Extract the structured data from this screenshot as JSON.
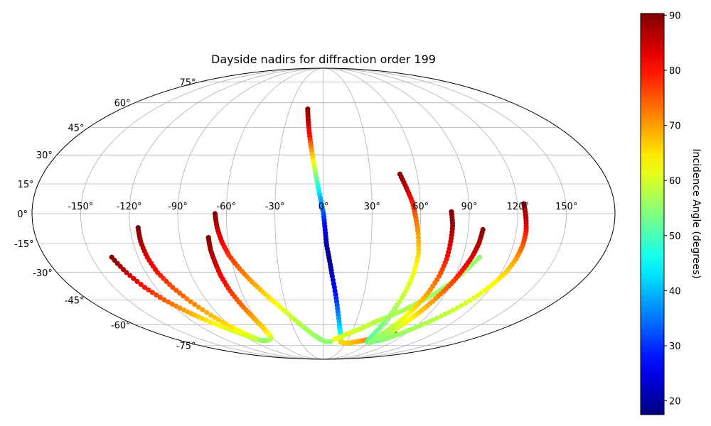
{
  "chart_data": {
    "type": "scatter",
    "projection": "mollweide",
    "title": "Dayside nadirs for diffraction order 199",
    "xlabel": "",
    "ylabel": "",
    "xlim": [
      -180,
      180
    ],
    "ylim": [
      -90,
      90
    ],
    "grid": true,
    "x_tick_values": [
      -150,
      -120,
      -90,
      -60,
      -30,
      0,
      30,
      60,
      90,
      120,
      150
    ],
    "x_tick_labels": [
      "-150°",
      "-120°",
      "-90°",
      "-60°",
      "-30°",
      "0°",
      "30°",
      "60°",
      "90°",
      "120°",
      "150°"
    ],
    "y_tick_values": [
      75,
      60,
      45,
      30,
      15,
      0,
      -15,
      -30,
      -45,
      -60,
      -75
    ],
    "y_tick_labels": [
      "75°",
      "60°",
      "45°",
      "30°",
      "15°",
      "0°",
      "-15°",
      "-30°",
      "-45°",
      "-60°",
      "-75°"
    ],
    "colorbar": {
      "label": "Incidence Angle (degrees)",
      "colormap": "jet",
      "range": [
        17.5,
        90.3
      ],
      "tick_values": [
        20,
        30,
        40,
        50,
        60,
        70,
        80,
        90
      ],
      "tick_labels": [
        "20",
        "30",
        "40",
        "50",
        "60",
        "70",
        "80",
        "90"
      ]
    },
    "series": [
      {
        "lon": [
          -137,
          -133,
          -128,
          -122,
          -115,
          -108,
          -100,
          -92,
          -86,
          -82,
          -79
        ],
        "lat": [
          -22,
          -30,
          -38,
          -45,
          -51,
          -56,
          -61,
          -65,
          -68,
          -70,
          -71
        ],
        "incidence": [
          90,
          86,
          80,
          75,
          70,
          66,
          62,
          60,
          58,
          56,
          55
        ]
      },
      {
        "lon": [
          -115,
          -115,
          -114,
          -112,
          -108,
          -103,
          -97,
          -91,
          -86,
          -82,
          -79
        ],
        "lat": [
          -7,
          -14,
          -22,
          -30,
          -38,
          -46,
          -54,
          -61,
          -66,
          -69,
          -71
        ],
        "incidence": [
          90,
          88,
          84,
          80,
          76,
          72,
          68,
          65,
          62,
          60,
          58
        ]
      },
      {
        "lon": [
          -72,
          -72,
          -71,
          -70,
          -68,
          -65,
          -62,
          -60,
          -60,
          -62,
          -65,
          -70,
          -75,
          -79
        ],
        "lat": [
          -12,
          -18,
          -25,
          -32,
          -40,
          -48,
          -55,
          -61,
          -66,
          -69,
          -70,
          -71,
          -71,
          -71
        ],
        "incidence": [
          90,
          88,
          85,
          82,
          78,
          74,
          70,
          67,
          64,
          61,
          59,
          57,
          56,
          55
        ]
      },
      {
        "lon": [
          -67,
          -66,
          -64,
          -61,
          -56,
          -50,
          -43,
          -35,
          -27,
          -19,
          -11,
          -4,
          3,
          9
        ],
        "lat": [
          0,
          -7,
          -14,
          -21,
          -28,
          -35,
          -42,
          -49,
          -56,
          -62,
          -67,
          -70,
          -72,
          -72
        ],
        "incidence": [
          90,
          86,
          82,
          78,
          74,
          70,
          66,
          62,
          59,
          57,
          56,
          55,
          55,
          55
        ]
      },
      {
        "lon": [
          -14,
          -12,
          -10,
          -8,
          -6,
          -4,
          -2,
          0,
          1,
          2,
          4,
          6,
          9,
          12,
          16,
          21
        ],
        "lat": [
          56,
          48,
          40,
          32,
          24,
          16,
          8,
          0,
          -8,
          -16,
          -24,
          -32,
          -42,
          -52,
          -62,
          -70
        ],
        "incidence": [
          90,
          86,
          80,
          70,
          60,
          50,
          40,
          32,
          25,
          20,
          18,
          22,
          28,
          35,
          42,
          48
        ]
      },
      {
        "lon": [
          22,
          28,
          35,
          42,
          50,
          57,
          63,
          68,
          73,
          78
        ],
        "lat": [
          -72,
          -73,
          -73,
          -72,
          -71,
          -70,
          -69,
          -68,
          -67,
          -66
        ],
        "incidence": [
          65,
          66,
          67,
          68,
          70,
          72,
          74,
          76,
          78,
          80
        ]
      },
      {
        "lon": [
          13,
          21,
          30,
          39,
          48,
          57,
          66,
          75,
          83,
          90,
          96,
          101
        ],
        "lat": [
          -70,
          -68,
          -65,
          -62,
          -58,
          -55,
          -51,
          -46,
          -41,
          -35,
          -28,
          -22
        ],
        "incidence": [
          62,
          61,
          60,
          59,
          58,
          58,
          57,
          57,
          56,
          56,
          56,
          55
        ]
      },
      {
        "lon": [
          49,
          52,
          55,
          57,
          59,
          61,
          61,
          60,
          58,
          56,
          55,
          57,
          62,
          68,
          74
        ],
        "lat": [
          20,
          13,
          6,
          -2,
          -10,
          -20,
          -30,
          -40,
          -50,
          -60,
          -68,
          -72,
          -72,
          -71,
          -70
        ],
        "incidence": [
          90,
          86,
          80,
          74,
          70,
          66,
          62,
          60,
          57,
          54,
          52,
          50,
          50,
          51,
          52
        ]
      },
      {
        "lon": [
          79,
          80,
          80,
          80,
          79,
          77,
          74,
          71,
          67,
          64,
          62,
          62
        ],
        "lat": [
          1,
          -6,
          -14,
          -23,
          -32,
          -41,
          -49,
          -56,
          -62,
          -67,
          -71,
          -73
        ],
        "incidence": [
          90,
          88,
          85,
          80,
          75,
          70,
          66,
          62,
          58,
          56,
          55,
          55
        ]
      },
      {
        "lon": [
          99,
          98,
          96,
          93,
          90,
          86,
          82,
          78,
          74,
          70
        ],
        "lat": [
          -8,
          -15,
          -22,
          -29,
          -36,
          -43,
          -50,
          -56,
          -62,
          -68
        ],
        "incidence": [
          90,
          87,
          84,
          80,
          76,
          72,
          68,
          64,
          60,
          56
        ]
      },
      {
        "lon": [
          124,
          125,
          126,
          126,
          125,
          123,
          119,
          114,
          107,
          99,
          91,
          84,
          77,
          71
        ],
        "lat": [
          5,
          -2,
          -9,
          -16,
          -23,
          -30,
          -37,
          -44,
          -51,
          -57,
          -62,
          -66,
          -69,
          -71
        ],
        "incidence": [
          90,
          86,
          80,
          75,
          70,
          66,
          63,
          61,
          59,
          58,
          57,
          56,
          55,
          55
        ]
      }
    ]
  }
}
